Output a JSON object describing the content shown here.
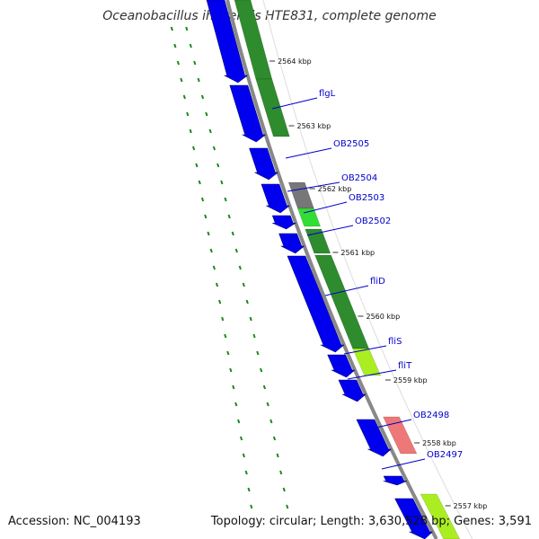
{
  "map": {
    "title": "Oceanobacillus iheyensis HTE831, complete genome",
    "accession_text": "Accession: NC_004193",
    "summary_text": "Topology: circular; Length: 3,630,528 bp; Genes: 3,591"
  },
  "ticks": [
    "2564 kbp",
    "2563 kbp",
    "2562 kbp",
    "2561 kbp",
    "2560 kbp",
    "2559 kbp",
    "2558 kbp",
    "2557 kbp"
  ],
  "gene_labels": [
    "flgL",
    "OB2505",
    "OB2504",
    "OB2503",
    "OB2502",
    "fliD",
    "fliS",
    "fliT",
    "OB2498",
    "OB2497"
  ],
  "colors": {
    "cds_forward": "#0000ee",
    "dark_green": "#2e8b2e",
    "light_green": "#33dd33",
    "yellow_green": "#aaee22",
    "gray": "#777777",
    "salmon": "#ee7777",
    "backbone": "#888888",
    "dots": "#1a8a1a",
    "label_blue": "#0000cc"
  }
}
